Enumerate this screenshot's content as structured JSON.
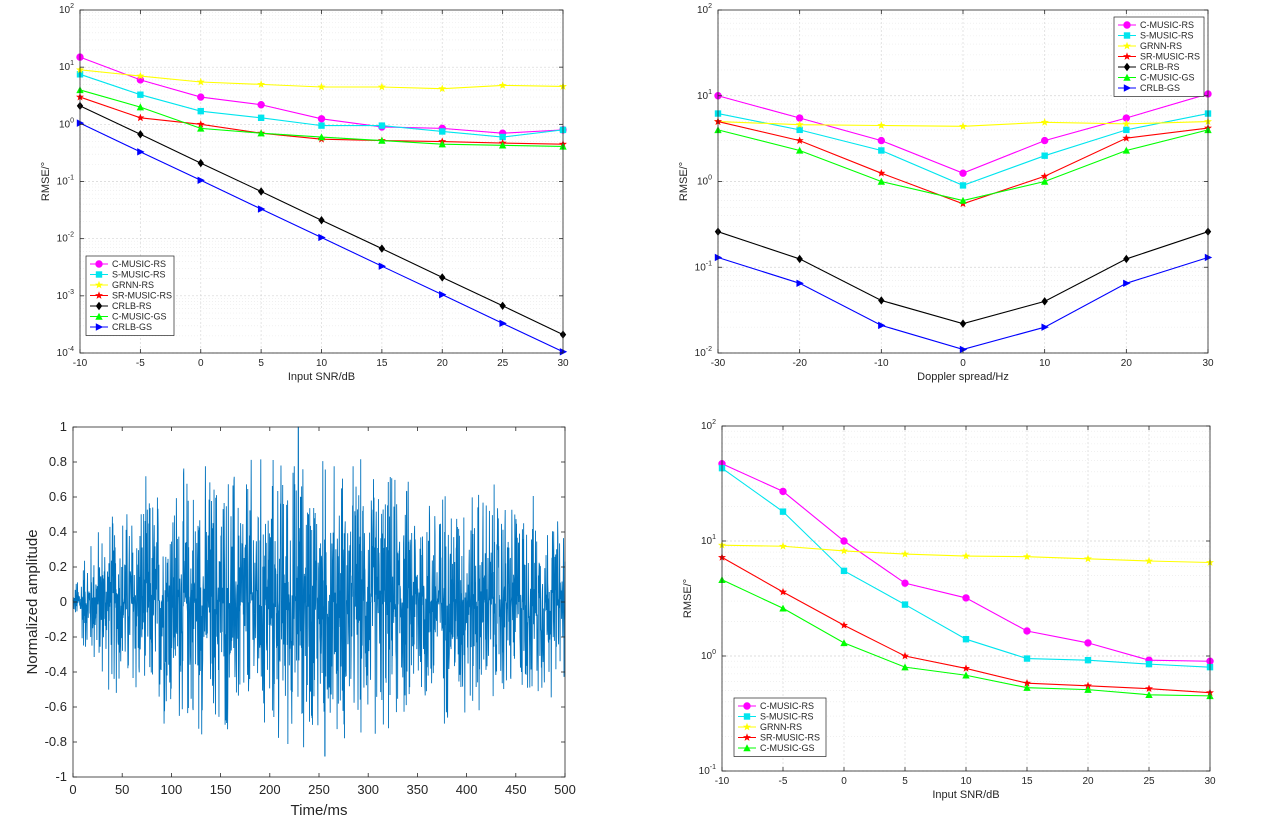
{
  "chart_data": [
    {
      "id": "p1",
      "type": "line",
      "title": "",
      "xlabel": "Input SNR/dB",
      "ylabel": "RMSE/°",
      "yscale": "log",
      "xlim": [
        -10,
        30
      ],
      "ylim": [
        0.0001,
        100
      ],
      "grid": true,
      "legend_loc": "lower-left",
      "x_ticks": [
        -10,
        -5,
        0,
        5,
        10,
        15,
        20,
        25,
        30
      ],
      "y_ticks": [
        0.0001,
        0.001,
        0.01,
        0.1,
        1,
        10,
        100
      ],
      "y_tick_labels": [
        {
          "base": "10",
          "exp": "-4"
        },
        {
          "base": "10",
          "exp": "-3"
        },
        {
          "base": "10",
          "exp": "-2"
        },
        {
          "base": "10",
          "exp": "-1"
        },
        {
          "base": "10",
          "exp": "0"
        },
        {
          "base": "10",
          "exp": "1"
        },
        {
          "base": "10",
          "exp": "2"
        }
      ],
      "x": [
        -10,
        -5,
        0,
        5,
        10,
        15,
        20,
        25,
        30
      ],
      "series": [
        {
          "name": "C-MUSIC-RS",
          "color": "#ff00ff",
          "marker": "circle",
          "values": [
            15,
            6,
            3,
            2.2,
            1.25,
            0.9,
            0.85,
            0.7,
            0.8
          ]
        },
        {
          "name": "S-MUSIC-RS",
          "color": "#00e5ee",
          "marker": "square",
          "values": [
            7.5,
            3.3,
            1.7,
            1.3,
            0.95,
            0.95,
            0.75,
            0.6,
            0.8
          ]
        },
        {
          "name": "GRNN-RS",
          "color": "#ffff00",
          "marker": "star",
          "values": [
            9,
            7,
            5.5,
            5,
            4.5,
            4.5,
            4.2,
            4.8,
            4.6
          ]
        },
        {
          "name": "SR-MUSIC-RS",
          "color": "#ff0000",
          "marker": "star",
          "values": [
            3,
            1.3,
            1.0,
            0.7,
            0.55,
            0.52,
            0.5,
            0.47,
            0.45
          ]
        },
        {
          "name": "CRLB-RS",
          "color": "#000000",
          "marker": "diamond",
          "values": [
            2.1,
            0.67,
            0.21,
            0.067,
            0.021,
            0.0067,
            0.0021,
            0.00067,
            0.00021
          ]
        },
        {
          "name": "C-MUSIC-GS",
          "color": "#00ff00",
          "marker": "triangle",
          "values": [
            4,
            2,
            0.85,
            0.7,
            0.6,
            0.52,
            0.45,
            0.43,
            0.41
          ]
        },
        {
          "name": "CRLB-GS",
          "color": "#0000ff",
          "marker": "triangle-right",
          "values": [
            1.05,
            0.33,
            0.105,
            0.033,
            0.0105,
            0.0033,
            0.00105,
            0.00033,
            0.000105
          ]
        }
      ]
    },
    {
      "id": "p2",
      "type": "line",
      "title": "",
      "xlabel": "Doppler spread/Hz",
      "ylabel": "RMSE/°",
      "yscale": "log",
      "xlim": [
        -30,
        30
      ],
      "ylim": [
        0.01,
        100
      ],
      "grid": true,
      "legend_loc": "top-right",
      "x_ticks": [
        -30,
        -20,
        -10,
        0,
        10,
        20,
        30
      ],
      "y_ticks": [
        0.01,
        0.1,
        1,
        10,
        100
      ],
      "y_tick_labels": [
        {
          "base": "10",
          "exp": "-2"
        },
        {
          "base": "10",
          "exp": "-1"
        },
        {
          "base": "10",
          "exp": "0"
        },
        {
          "base": "10",
          "exp": "1"
        },
        {
          "base": "10",
          "exp": "2"
        }
      ],
      "x": [
        -30,
        -20,
        -10,
        0,
        10,
        20,
        30
      ],
      "series": [
        {
          "name": "C-MUSIC-RS",
          "color": "#ff00ff",
          "marker": "circle",
          "values": [
            10,
            5.5,
            3,
            1.25,
            3,
            5.5,
            10.5
          ]
        },
        {
          "name": "S-MUSIC-RS",
          "color": "#00e5ee",
          "marker": "square",
          "values": [
            6.2,
            4,
            2.3,
            0.9,
            2,
            4,
            6.2
          ]
        },
        {
          "name": "GRNN-RS",
          "color": "#ffff00",
          "marker": "star",
          "values": [
            5,
            4.6,
            4.5,
            4.4,
            4.9,
            4.7,
            5
          ]
        },
        {
          "name": "SR-MUSIC-RS",
          "color": "#ff0000",
          "marker": "star",
          "values": [
            5,
            3,
            1.25,
            0.55,
            1.15,
            3.2,
            4.2
          ]
        },
        {
          "name": "CRLB-RS",
          "color": "#000000",
          "marker": "diamond",
          "values": [
            0.26,
            0.125,
            0.041,
            0.022,
            0.04,
            0.125,
            0.26
          ]
        },
        {
          "name": "C-MUSIC-GS",
          "color": "#00ff00",
          "marker": "triangle",
          "values": [
            4,
            2.3,
            1.0,
            0.6,
            1.0,
            2.3,
            4
          ]
        },
        {
          "name": "CRLB-GS",
          "color": "#0000ff",
          "marker": "triangle-right",
          "values": [
            0.13,
            0.065,
            0.021,
            0.011,
            0.02,
            0.065,
            0.13
          ]
        }
      ]
    },
    {
      "id": "p3",
      "type": "line",
      "title": "",
      "xlabel": "Time/ms",
      "ylabel": "Normalized amplitude",
      "yscale": "linear",
      "xlim": [
        0,
        500
      ],
      "ylim": [
        -1,
        1
      ],
      "grid": false,
      "x_ticks": [
        0,
        50,
        100,
        150,
        200,
        250,
        300,
        350,
        400,
        450,
        500
      ],
      "y_ticks": [
        -1,
        -0.8,
        -0.6,
        -0.4,
        -0.2,
        0,
        0.2,
        0.4,
        0.6,
        0.8,
        1
      ],
      "y_tick_labels_text": [
        "-1",
        "-0.8",
        "-0.6",
        "-0.4",
        "-0.2",
        "0",
        "0.2",
        "0.4",
        "0.6",
        "0.8",
        "1"
      ],
      "series": [
        {
          "name": "signal",
          "color": "#0072bd",
          "sample_count": 2000,
          "peak_max": 1.0,
          "peak_min": -0.88,
          "envelope": [
            [
              0,
              0.05
            ],
            [
              10,
              0.25
            ],
            [
              25,
              0.4
            ],
            [
              60,
              0.55
            ],
            [
              100,
              0.65
            ],
            [
              150,
              0.7
            ],
            [
              230,
              0.75
            ],
            [
              300,
              0.7
            ],
            [
              350,
              0.62
            ],
            [
              420,
              0.6
            ],
            [
              470,
              0.52
            ],
            [
              500,
              0.42
            ]
          ]
        }
      ]
    },
    {
      "id": "p4",
      "type": "line",
      "title": "",
      "xlabel": "Input SNR/dB",
      "ylabel": "RMSE/°",
      "yscale": "log",
      "xlim": [
        -10,
        30
      ],
      "ylim": [
        0.1,
        100
      ],
      "grid": true,
      "legend_loc": "lower-left",
      "x_ticks": [
        -10,
        -5,
        0,
        5,
        10,
        15,
        20,
        25,
        30
      ],
      "y_ticks": [
        0.1,
        1,
        10,
        100
      ],
      "y_tick_labels": [
        {
          "base": "10",
          "exp": "-1"
        },
        {
          "base": "10",
          "exp": "0"
        },
        {
          "base": "10",
          "exp": "1"
        },
        {
          "base": "10",
          "exp": "2"
        }
      ],
      "x": [
        -10,
        -5,
        0,
        5,
        10,
        15,
        20,
        25,
        30
      ],
      "series": [
        {
          "name": "C-MUSIC-RS",
          "color": "#ff00ff",
          "marker": "circle",
          "values": [
            47,
            27,
            10,
            4.3,
            3.2,
            1.65,
            1.3,
            0.92,
            0.9
          ]
        },
        {
          "name": "S-MUSIC-RS",
          "color": "#00e5ee",
          "marker": "square",
          "values": [
            43,
            18,
            5.5,
            2.8,
            1.4,
            0.95,
            0.92,
            0.85,
            0.8
          ]
        },
        {
          "name": "GRNN-RS",
          "color": "#ffff00",
          "marker": "star",
          "values": [
            9.2,
            9,
            8.2,
            7.7,
            7.4,
            7.3,
            7,
            6.7,
            6.5
          ]
        },
        {
          "name": "SR-MUSIC-RS",
          "color": "#ff0000",
          "marker": "star",
          "values": [
            7.2,
            3.6,
            1.85,
            1.0,
            0.78,
            0.58,
            0.55,
            0.52,
            0.48
          ]
        },
        {
          "name": "C-MUSIC-GS",
          "color": "#00ff00",
          "marker": "triangle",
          "values": [
            4.6,
            2.6,
            1.3,
            0.8,
            0.68,
            0.53,
            0.51,
            0.46,
            0.45
          ]
        }
      ]
    }
  ]
}
